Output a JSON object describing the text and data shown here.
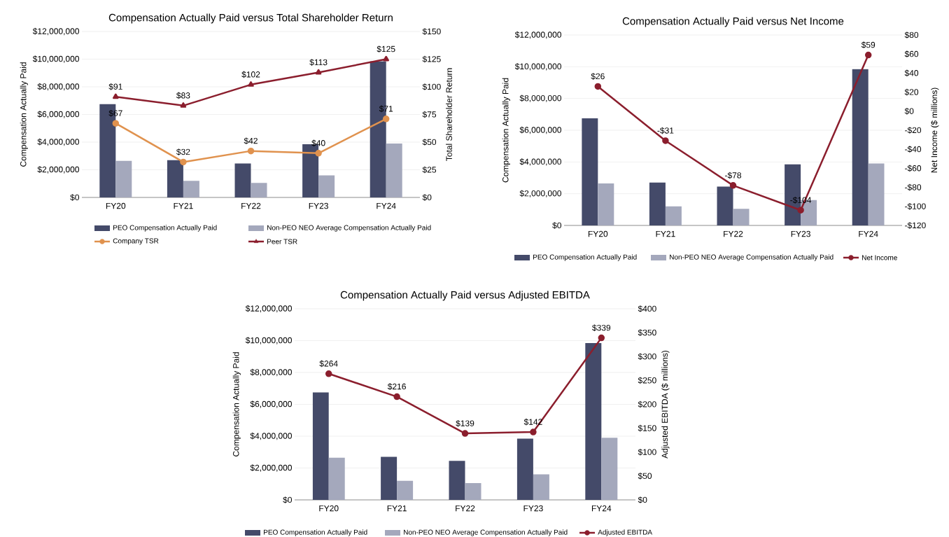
{
  "chart_data": [
    {
      "type": "bar",
      "title": "Compensation Actually Paid versus Total Shareholder Return",
      "ylabel": "Compensation Actually Paid",
      "y2label": "Total Shareholder Return",
      "categories": [
        "FY20",
        "FY21",
        "FY22",
        "FY23",
        "FY24"
      ],
      "series": [
        {
          "name": "PEO Compensation Actually Paid",
          "color": "#444a69",
          "values": [
            6750000,
            2700000,
            2450000,
            3850000,
            9850000
          ]
        },
        {
          "name": "Non-PEO NEO Average Compensation Actually Paid",
          "color": "#a4a8bc",
          "values": [
            2650000,
            1200000,
            1050000,
            1600000,
            3900000
          ]
        },
        {
          "name": "Company TSR",
          "type": "line",
          "axis": "y2",
          "color": "#e0924e",
          "marker": "circle",
          "values": [
            67,
            32,
            42,
            40,
            71
          ],
          "value_labels": [
            "$67",
            "$32",
            "$42",
            "$40",
            "$71"
          ]
        },
        {
          "name": "Peer TSR",
          "type": "line",
          "axis": "y2",
          "color": "#8b1e2d",
          "marker": "triangle",
          "values": [
            91,
            83,
            102,
            113,
            125
          ],
          "value_labels": [
            "$91",
            "$83",
            "$102",
            "$113",
            "$125"
          ]
        }
      ],
      "ylim": [
        0,
        12000000
      ],
      "yticks": [
        {
          "value": 0,
          "label": "$0"
        },
        {
          "value": 2000000,
          "label": "$2,000,000"
        },
        {
          "value": 4000000,
          "label": "$4,000,000"
        },
        {
          "value": 6000000,
          "label": "$6,000,000"
        },
        {
          "value": 8000000,
          "label": "$8,000,000"
        },
        {
          "value": 10000000,
          "label": "$10,000,000"
        },
        {
          "value": 12000000,
          "label": "$12,000,000"
        }
      ],
      "y2lim": [
        0,
        150
      ],
      "y2ticks": [
        {
          "value": 0,
          "label": "$0"
        },
        {
          "value": 25,
          "label": "$25"
        },
        {
          "value": 50,
          "label": "$50"
        },
        {
          "value": 75,
          "label": "$75"
        },
        {
          "value": 100,
          "label": "$100"
        },
        {
          "value": 125,
          "label": "$125"
        },
        {
          "value": 150,
          "label": "$150"
        }
      ],
      "grid": "y",
      "legend": "bottom"
    },
    {
      "type": "bar",
      "title": "Compensation Actually Paid versus Net Income",
      "ylabel": "Compensation Actually Paid",
      "y2label": "Net Income ($ millions)",
      "categories": [
        "FY20",
        "FY21",
        "FY22",
        "FY23",
        "FY24"
      ],
      "series": [
        {
          "name": "PEO Compensation Actually Paid",
          "color": "#444a69",
          "values": [
            6750000,
            2700000,
            2450000,
            3850000,
            9850000
          ]
        },
        {
          "name": "Non-PEO NEO Average Compensation Actually Paid",
          "color": "#a4a8bc",
          "values": [
            2650000,
            1200000,
            1050000,
            1600000,
            3900000
          ]
        },
        {
          "name": "Net Income",
          "type": "line",
          "axis": "y2",
          "color": "#8b1e2d",
          "marker": "circle",
          "values": [
            26,
            -31,
            -78,
            -104,
            59
          ],
          "value_labels": [
            "$26",
            "-$31",
            "-$78",
            "-$104",
            "$59"
          ]
        }
      ],
      "ylim": [
        0,
        12000000
      ],
      "yticks": [
        {
          "value": 0,
          "label": "$0"
        },
        {
          "value": 2000000,
          "label": "$2,000,000"
        },
        {
          "value": 4000000,
          "label": "$4,000,000"
        },
        {
          "value": 6000000,
          "label": "$6,000,000"
        },
        {
          "value": 8000000,
          "label": "$8,000,000"
        },
        {
          "value": 10000000,
          "label": "$10,000,000"
        },
        {
          "value": 12000000,
          "label": "$12,000,000"
        }
      ],
      "y2lim": [
        -120,
        80
      ],
      "y2ticks": [
        {
          "value": -120,
          "label": "-$120"
        },
        {
          "value": -100,
          "label": "-$100"
        },
        {
          "value": -80,
          "label": "-$80"
        },
        {
          "value": -60,
          "label": "-$60"
        },
        {
          "value": -40,
          "label": "-$40"
        },
        {
          "value": -20,
          "label": "-$20"
        },
        {
          "value": 0,
          "label": "$0"
        },
        {
          "value": 20,
          "label": "$20"
        },
        {
          "value": 40,
          "label": "$40"
        },
        {
          "value": 60,
          "label": "$60"
        },
        {
          "value": 80,
          "label": "$80"
        }
      ],
      "grid": "y",
      "legend": "bottom"
    },
    {
      "type": "bar",
      "title": "Compensation Actually Paid versus Adjusted EBITDA",
      "ylabel": "Compensation Actually Paid",
      "y2label": "Adjusted EBITDA ($ millions)",
      "categories": [
        "FY20",
        "FY21",
        "FY22",
        "FY23",
        "FY24"
      ],
      "series": [
        {
          "name": "PEO Compensation Actually Paid",
          "color": "#444a69",
          "values": [
            6750000,
            2700000,
            2450000,
            3850000,
            9850000
          ]
        },
        {
          "name": "Non-PEO NEO Average Compensation Actually Paid",
          "color": "#a4a8bc",
          "values": [
            2650000,
            1200000,
            1050000,
            1600000,
            3900000
          ]
        },
        {
          "name": "Adjusted EBITDA",
          "type": "line",
          "axis": "y2",
          "color": "#8b1e2d",
          "marker": "circle",
          "values": [
            264,
            216,
            139,
            142,
            339
          ],
          "value_labels": [
            "$264",
            "$216",
            "$139",
            "$142",
            "$339"
          ]
        }
      ],
      "ylim": [
        0,
        12000000
      ],
      "yticks": [
        {
          "value": 0,
          "label": "$0"
        },
        {
          "value": 2000000,
          "label": "$2,000,000"
        },
        {
          "value": 4000000,
          "label": "$4,000,000"
        },
        {
          "value": 6000000,
          "label": "$6,000,000"
        },
        {
          "value": 8000000,
          "label": "$8,000,000"
        },
        {
          "value": 10000000,
          "label": "$10,000,000"
        },
        {
          "value": 12000000,
          "label": "$12,000,000"
        }
      ],
      "y2lim": [
        0,
        400
      ],
      "y2ticks": [
        {
          "value": 0,
          "label": "$0"
        },
        {
          "value": 50,
          "label": "$50"
        },
        {
          "value": 100,
          "label": "$100"
        },
        {
          "value": 150,
          "label": "$150"
        },
        {
          "value": 200,
          "label": "$200"
        },
        {
          "value": 250,
          "label": "$250"
        },
        {
          "value": 300,
          "label": "$300"
        },
        {
          "value": 350,
          "label": "$350"
        },
        {
          "value": 400,
          "label": "$400"
        }
      ],
      "grid": "y",
      "legend": "bottom"
    }
  ]
}
